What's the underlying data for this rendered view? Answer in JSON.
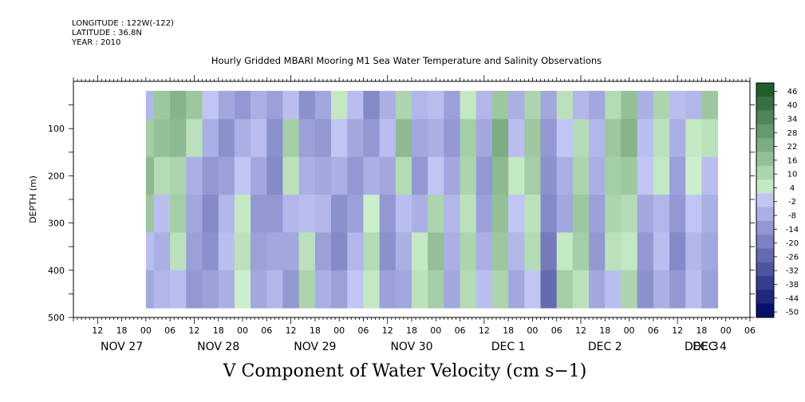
{
  "header": {
    "longitude": "LONGITUDE : 122W(-122)",
    "latitude": "LATITUDE : 36.8N",
    "year": "YEAR : 2010"
  },
  "colors": {
    "negative_dark": "#08106e",
    "negative_light": "#c9cdfa",
    "positive_light": "#d2f5d2",
    "positive_dark": "#0a4a16"
  },
  "chart_data": {
    "type": "heatmap",
    "title": "Hourly Gridded MBARI Mooring M1 Sea Water Temperature and Salinity Observations",
    "subtitle": "V Component of Water Velocity (cm s−1)",
    "ylabel": "DEPTH (m)",
    "xlabel": "",
    "ylim": [
      500,
      0
    ],
    "xlim_hours": [
      0,
      168
    ],
    "data_range_hours": [
      18,
      160
    ],
    "data_range_depth": [
      20,
      485
    ],
    "y_ticks": [
      100,
      200,
      300,
      400,
      500
    ],
    "x_hour_labels": [
      "12",
      "18",
      "00",
      "06",
      "12",
      "18",
      "00",
      "06",
      "12",
      "18",
      "00",
      "06",
      "12",
      "18",
      "00",
      "06",
      "12",
      "18",
      "00",
      "06",
      "12",
      "18",
      "00",
      "06",
      "12",
      "18",
      "00",
      "06"
    ],
    "x_date_labels": [
      "NOV 27",
      "NOV 28",
      "NOV 29",
      "NOV 30",
      "DEC  1",
      "DEC  2",
      "DEC  3",
      "DEC  4"
    ],
    "colorbar_levels": [
      46,
      40,
      34,
      28,
      22,
      16,
      10,
      4,
      -2,
      -8,
      -14,
      -20,
      -26,
      -32,
      -38,
      -44,
      -50
    ],
    "colorbar_range": [
      -50,
      52
    ],
    "time_columns_hours": [
      18,
      22,
      26,
      30,
      34,
      38,
      42,
      46,
      50,
      54,
      58,
      62,
      66,
      70,
      74,
      78,
      82,
      86,
      90,
      94,
      98,
      102,
      106,
      110,
      114,
      118,
      122,
      126,
      130,
      134,
      138,
      142,
      146,
      150,
      154,
      158
    ],
    "depth_rows_m": [
      40,
      120,
      200,
      280,
      360,
      440
    ],
    "values": [
      [
        -6,
        12,
        18,
        14,
        -4,
        -10
      ],
      [
        14,
        16,
        8,
        -4,
        -8,
        -6
      ],
      [
        20,
        18,
        10,
        12,
        6,
        -4
      ],
      [
        14,
        6,
        -8,
        -10,
        -12,
        -14
      ],
      [
        -2,
        -8,
        -14,
        -18,
        -16,
        -12
      ],
      [
        -10,
        -16,
        -12,
        -6,
        -4,
        -8
      ],
      [
        -14,
        -8,
        -2,
        4,
        6,
        2
      ],
      [
        -8,
        -4,
        -10,
        -14,
        -12,
        -10
      ],
      [
        -12,
        -16,
        -18,
        -14,
        -10,
        -6
      ],
      [
        -4,
        12,
        6,
        -6,
        -10,
        -14
      ],
      [
        -16,
        -12,
        -8,
        -4,
        6,
        10
      ],
      [
        -10,
        -14,
        -10,
        -6,
        -12,
        -8
      ],
      [
        4,
        -2,
        -8,
        -16,
        -18,
        -12
      ],
      [
        -4,
        -10,
        -14,
        -12,
        -6,
        -2
      ],
      [
        -18,
        -14,
        -8,
        2,
        8,
        4
      ],
      [
        -8,
        -4,
        -10,
        -14,
        -16,
        -12
      ],
      [
        10,
        18,
        8,
        -4,
        -8,
        -10
      ],
      [
        -6,
        -10,
        -14,
        -8,
        4,
        6
      ],
      [
        -4,
        -8,
        -2,
        10,
        16,
        12
      ],
      [
        -12,
        -14,
        -10,
        -6,
        -8,
        -10
      ],
      [
        4,
        12,
        10,
        6,
        10,
        8
      ],
      [
        -6,
        -10,
        -14,
        -12,
        -8,
        -4
      ],
      [
        14,
        22,
        18,
        16,
        14,
        10
      ],
      [
        -8,
        -4,
        4,
        -2,
        -6,
        -10
      ],
      [
        10,
        14,
        12,
        6,
        8,
        -2
      ],
      [
        -10,
        -14,
        -16,
        -18,
        -22,
        -26
      ],
      [
        6,
        -2,
        -8,
        -10,
        4,
        12
      ],
      [
        -6,
        8,
        10,
        14,
        12,
        6
      ],
      [
        -10,
        -6,
        -8,
        -12,
        -14,
        -10
      ],
      [
        8,
        14,
        12,
        10,
        6,
        -4
      ],
      [
        16,
        20,
        14,
        8,
        4,
        10
      ],
      [
        -8,
        -4,
        -2,
        -10,
        -14,
        -16
      ],
      [
        10,
        6,
        4,
        -6,
        -4,
        -8
      ],
      [
        -4,
        -8,
        -12,
        -14,
        -18,
        -14
      ],
      [
        -6,
        4,
        2,
        -2,
        -6,
        -4
      ],
      [
        14,
        6,
        -4,
        -8,
        -10,
        -12
      ]
    ]
  }
}
